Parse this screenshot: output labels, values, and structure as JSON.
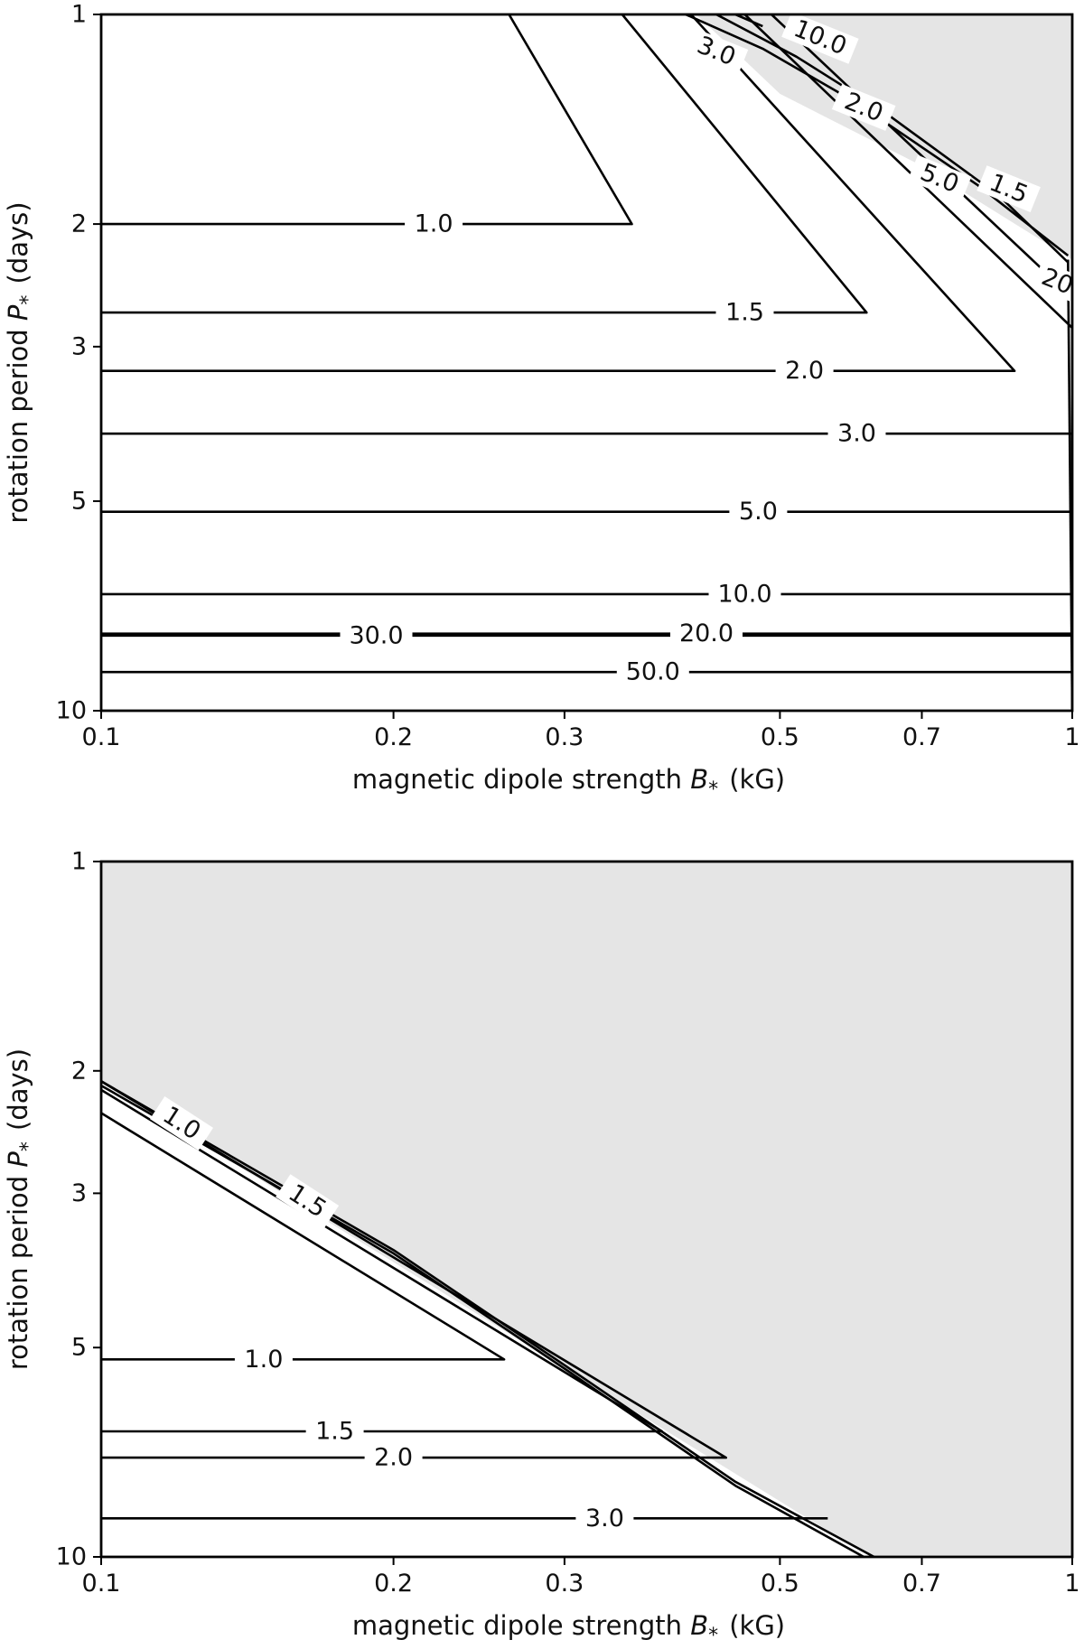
{
  "chart_data": [
    {
      "type": "contour",
      "title": "",
      "xlabel": "magnetic dipole strength $B_*$ (kG)",
      "ylabel": "rotation period $P_*$ (days)",
      "xscale": "log",
      "yscale": "log",
      "xlim": [
        0.1,
        1
      ],
      "ylim": [
        10,
        1
      ],
      "x_ticks": [
        0.1,
        0.2,
        0.3,
        0.5,
        0.7,
        1
      ],
      "x_tick_labels": [
        "0.1",
        "0.2",
        "0.3",
        "0.5",
        "0.7",
        "1"
      ],
      "y_ticks": [
        1,
        2,
        3,
        5,
        10
      ],
      "y_tick_labels": [
        "1",
        "2",
        "3",
        "5",
        "10"
      ],
      "excluded_region_color": "#e5e5e5",
      "excluded_region": [
        [
          0.41,
          1
        ],
        [
          1,
          1
        ],
        [
          1,
          2.25
        ],
        [
          0.99,
          2.23
        ],
        [
          0.7,
          1.65
        ],
        [
          0.5,
          1.3
        ]
      ],
      "contours": [
        {
          "level": "1.0",
          "points": [
            [
              0.1,
              2.0
            ],
            [
              0.352,
              2.0
            ],
            [
              0.263,
              1.0
            ]
          ],
          "labels": [
            {
              "text": "1.0",
              "x": 0.22,
              "y": 2.0,
              "rotation": 0
            }
          ]
        },
        {
          "level": "1.5",
          "points": [
            [
              0.1,
              2.68
            ],
            [
              0.614,
              2.68
            ],
            [
              0.344,
              1.0
            ]
          ],
          "labels": [
            {
              "text": "1.5",
              "x": 0.46,
              "y": 2.68,
              "rotation": 0
            }
          ]
        },
        {
          "level": "2.0",
          "points": [
            [
              0.1,
              3.25
            ],
            [
              0.872,
              3.25
            ],
            [
              0.405,
              1.0
            ]
          ],
          "labels": [
            {
              "text": "2.0",
              "x": 0.53,
              "y": 3.25,
              "rotation": 0
            }
          ]
        },
        {
          "level": "3.0",
          "points": [
            [
              0.1,
              4.0
            ],
            [
              1,
              4.0
            ]
          ],
          "labels": [
            {
              "text": "3.0",
              "x": 0.6,
              "y": 4.0,
              "rotation": 0
            }
          ]
        },
        {
          "level": "3.0",
          "points": [
            [
              0.46,
              1.0
            ],
            [
              1,
              2.82
            ]
          ],
          "labels": [
            {
              "text": "3.0",
              "x": 0.43,
              "y": 1.13,
              "rotation": 22
            }
          ]
        },
        {
          "level": "5.0",
          "points": [
            [
              0.1,
              5.18
            ],
            [
              1,
              5.18
            ]
          ],
          "labels": [
            {
              "text": "5.0",
              "x": 0.475,
              "y": 5.18,
              "rotation": 0
            }
          ]
        },
        {
          "level": "5.0",
          "points": [
            [
              0.49,
              1.0
            ],
            [
              1,
              2.55
            ]
          ],
          "labels": [
            {
              "text": "5.0",
              "x": 0.73,
              "y": 1.72,
              "rotation": 22
            }
          ]
        },
        {
          "level": "10.0",
          "points": [
            [
              0.1,
              6.8
            ],
            [
              1,
              6.8
            ]
          ],
          "labels": [
            {
              "text": "10.0",
              "x": 0.46,
              "y": 6.8,
              "rotation": 0
            }
          ]
        },
        {
          "level": "20.0",
          "points": [
            [
              0.1,
              7.75
            ],
            [
              1,
              7.75
            ]
          ],
          "labels": [
            {
              "text": "20.0",
              "x": 0.42,
              "y": 7.75,
              "rotation": 0
            }
          ]
        },
        {
          "level": "30.0",
          "points": [
            [
              0.1,
              7.8
            ],
            [
              1,
              7.8
            ]
          ],
          "labels": [
            {
              "text": "30.0",
              "x": 0.192,
              "y": 7.8,
              "rotation": 0
            }
          ]
        },
        {
          "level": "50.0",
          "points": [
            [
              0.1,
              8.8
            ],
            [
              1,
              8.8
            ]
          ],
          "labels": [
            {
              "text": "50.0",
              "x": 0.37,
              "y": 8.8,
              "rotation": 0
            }
          ]
        },
        {
          "level": "2.0",
          "points": [
            [
              0.4,
              1.0
            ],
            [
              0.48,
              1.12
            ],
            [
              0.6,
              1.34
            ],
            [
              0.8,
              1.76
            ],
            [
              0.99,
              2.22
            ]
          ],
          "labels": [
            {
              "text": "2.0",
              "x": 0.61,
              "y": 1.36,
              "rotation": 22
            }
          ]
        },
        {
          "level": "1.5",
          "points": [
            [
              0.43,
              1.0
            ],
            [
              0.52,
              1.15
            ],
            [
              0.64,
              1.38
            ],
            [
              0.84,
              1.82
            ],
            [
              0.99,
              2.27
            ]
          ],
          "labels": [
            {
              "text": "1.5",
              "x": 0.86,
              "y": 1.78,
              "rotation": 22
            }
          ]
        },
        {
          "level": "10.0",
          "points": [
            [
              0.45,
              1.0
            ],
            [
              0.48,
              1.04
            ]
          ],
          "labels": [
            {
              "text": "10.0",
              "x": 0.55,
              "y": 1.08,
              "rotation": 22
            }
          ]
        },
        {
          "level": "20.0",
          "points": [
            [
              0.99,
              2.25
            ],
            [
              1,
              10
            ]
          ],
          "labels": [
            {
              "text": "20",
              "x": 0.965,
              "y": 2.42,
              "rotation": 22
            }
          ]
        }
      ]
    },
    {
      "type": "contour",
      "title": "",
      "xlabel": "magnetic dipole strength $B_*$ (kG)",
      "ylabel": "rotation period $P_*$ (days)",
      "xscale": "log",
      "yscale": "log",
      "xlim": [
        0.1,
        1
      ],
      "ylim": [
        10,
        1
      ],
      "x_ticks": [
        0.1,
        0.2,
        0.3,
        0.5,
        0.7,
        1
      ],
      "x_tick_labels": [
        "0.1",
        "0.2",
        "0.3",
        "0.5",
        "0.7",
        "1"
      ],
      "y_ticks": [
        1,
        2,
        3,
        5,
        10
      ],
      "y_tick_labels": [
        "1",
        "2",
        "3",
        "5",
        "10"
      ],
      "excluded_region_color": "#e5e5e5",
      "excluded_region": [
        [
          0.1,
          1
        ],
        [
          1,
          1
        ],
        [
          1,
          10
        ],
        [
          0.625,
          10
        ],
        [
          0.59,
          9.6
        ],
        [
          0.1,
          2.07
        ]
      ],
      "contours": [
        {
          "level": "1.0",
          "points": [
            [
              0.1,
              5.2
            ],
            [
              0.26,
              5.2
            ],
            [
              0.1,
              2.3
            ]
          ],
          "labels": [
            {
              "text": "1.0",
              "x": 0.147,
              "y": 5.2,
              "rotation": 0
            }
          ]
        },
        {
          "level": "1.5",
          "points": [
            [
              0.1,
              6.6
            ],
            [
              0.378,
              6.6
            ],
            [
              0.1,
              2.13
            ]
          ],
          "labels": [
            {
              "text": "1.5",
              "x": 0.174,
              "y": 6.6,
              "rotation": 0
            }
          ]
        },
        {
          "level": "2.0",
          "points": [
            [
              0.1,
              7.2
            ],
            [
              0.44,
              7.2
            ],
            [
              0.1,
              2.07
            ]
          ],
          "labels": [
            {
              "text": "2.0",
              "x": 0.2,
              "y": 7.2,
              "rotation": 0
            }
          ]
        },
        {
          "level": "3.0",
          "points": [
            [
              0.1,
              8.8
            ],
            [
              0.56,
              8.8
            ]
          ],
          "labels": [
            {
              "text": "3.0",
              "x": 0.33,
              "y": 8.8,
              "rotation": 0
            }
          ]
        },
        {
          "level": "1.0",
          "points": [
            [
              0.1,
              2.07
            ],
            [
              0.2,
              3.62
            ],
            [
              0.3,
              5.3
            ],
            [
              0.45,
              7.8
            ],
            [
              0.625,
              10.0
            ]
          ],
          "labels": [
            {
              "text": "1.0",
              "x": 0.121,
              "y": 2.38,
              "rotation": 33
            }
          ]
        },
        {
          "level": "1.5",
          "points": [
            [
              0.1,
              2.1
            ],
            [
              0.2,
              3.66
            ],
            [
              0.3,
              5.36
            ],
            [
              0.45,
              7.9
            ],
            [
              0.61,
              10.0
            ]
          ],
          "labels": [
            {
              "text": "1.5",
              "x": 0.163,
              "y": 3.08,
              "rotation": 33
            }
          ]
        }
      ]
    }
  ]
}
